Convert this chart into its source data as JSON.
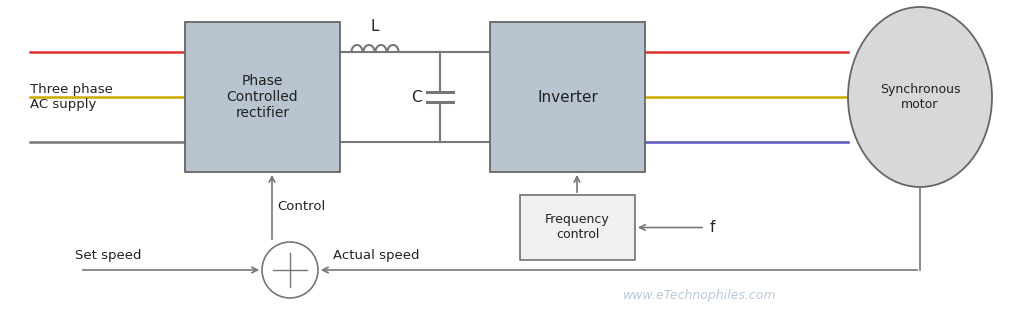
{
  "bg_color": "#ffffff",
  "box_fill": "#b8c4d0",
  "box_edge": "#666666",
  "line_color": "#777777",
  "red_line": "#e03030",
  "yellow_line": "#ccaa00",
  "blue_line": "#5555bb",
  "motor_fill": "#d8d8d8",
  "freq_box_fill": "#f0f0f0",
  "watermark_color": "#b8c8d8",
  "text_color": "#222222",
  "watermark": "www.eTechnophiles.com",
  "label_rect1": "Phase\nControlled\nrectifier",
  "label_rect2": "Inverter",
  "label_motor": "Synchronous\nmotor",
  "label_freq": "Frequency\ncontrol",
  "label_supply": "Three phase\nAC supply",
  "label_control": "Control",
  "label_actual": "Actual speed",
  "label_setspeed": "Set speed",
  "label_L": "L",
  "label_C": "C",
  "label_f": "f"
}
